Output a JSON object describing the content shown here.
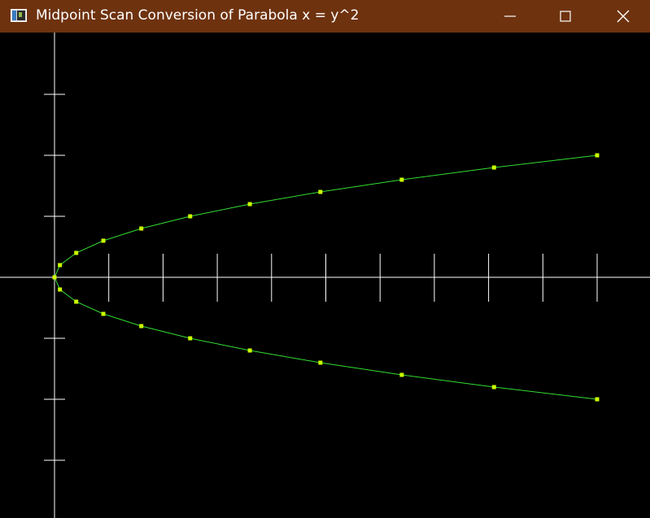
{
  "window": {
    "title": "Midpoint Scan Conversion of Parabola x = y^2",
    "titlebar_color": "#6e320f",
    "icons": {
      "app": "application-window-icon",
      "minimize": "minimize-icon",
      "maximize": "maximize-icon",
      "close": "close-icon"
    }
  },
  "colors": {
    "background": "#000000",
    "axis": "#ffffff",
    "curve": "#33dd33",
    "points": "#ccff00"
  },
  "plot": {
    "upper_branch": [
      {
        "x": 0,
        "y": 0
      },
      {
        "x": 1,
        "y": 1
      },
      {
        "x": 4,
        "y": 2
      },
      {
        "x": 9,
        "y": 3
      },
      {
        "x": 16,
        "y": 4
      },
      {
        "x": 25,
        "y": 5
      },
      {
        "x": 36,
        "y": 6
      },
      {
        "x": 49,
        "y": 7
      },
      {
        "x": 64,
        "y": 8
      },
      {
        "x": 81,
        "y": 9
      },
      {
        "x": 100,
        "y": 10
      }
    ],
    "lower_branch": [
      {
        "x": 0,
        "y": 0
      },
      {
        "x": 1,
        "y": -1
      },
      {
        "x": 4,
        "y": -2
      },
      {
        "x": 9,
        "y": -3
      },
      {
        "x": 16,
        "y": -4
      },
      {
        "x": 25,
        "y": -5
      },
      {
        "x": 36,
        "y": -6
      },
      {
        "x": 49,
        "y": -7
      },
      {
        "x": 64,
        "y": -8
      },
      {
        "x": 81,
        "y": -9
      },
      {
        "x": 100,
        "y": -10
      }
    ],
    "x_ticks": [
      10,
      20,
      30,
      40,
      50,
      60,
      70,
      80,
      90,
      100
    ],
    "y_ticks": [
      -15,
      -10,
      -5,
      5,
      10,
      15
    ]
  }
}
